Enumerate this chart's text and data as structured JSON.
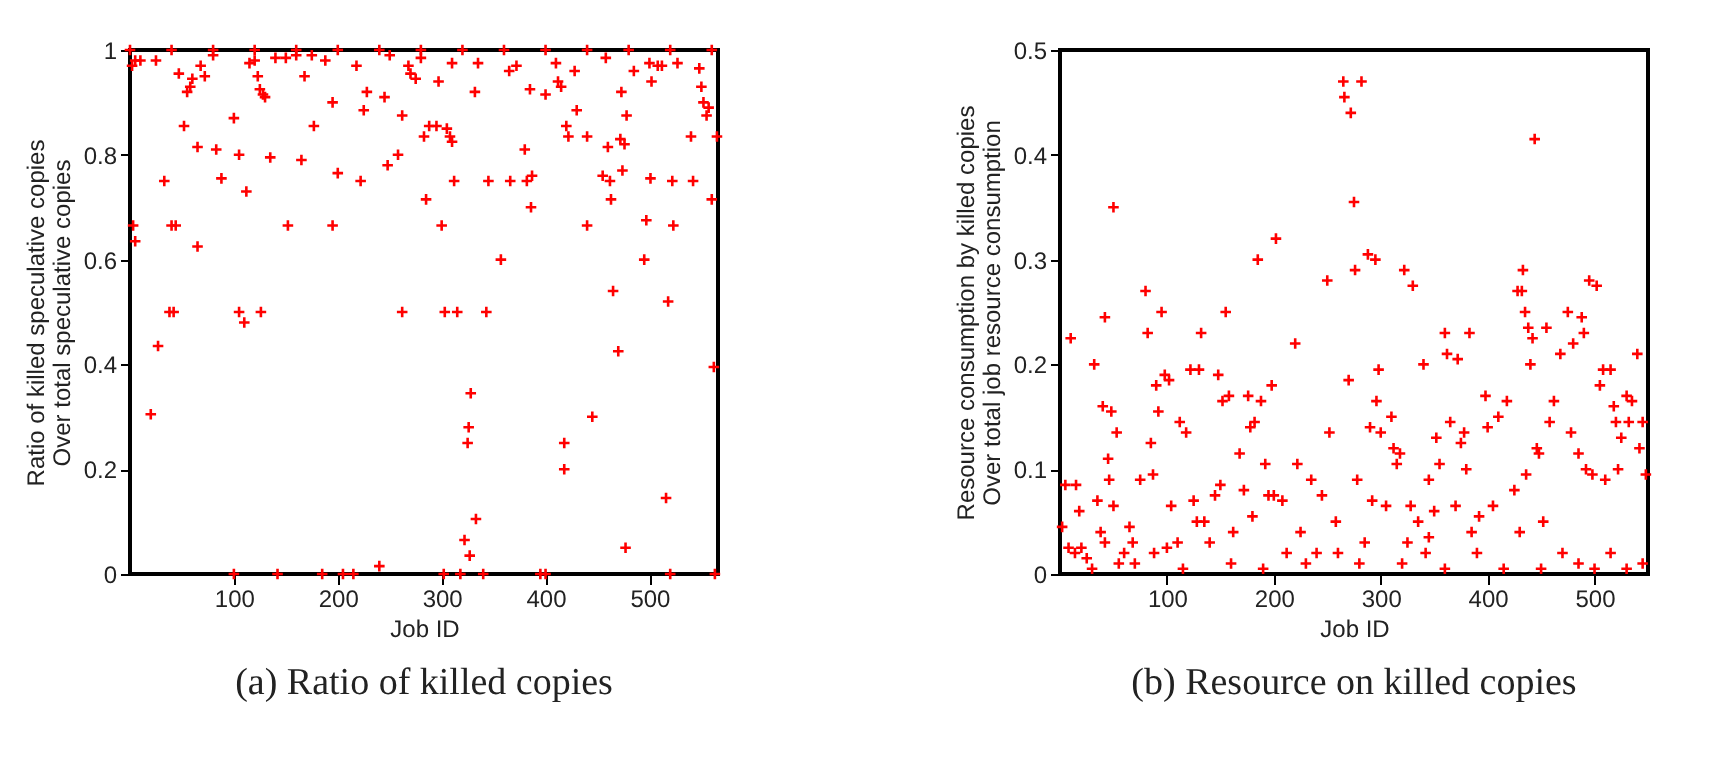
{
  "chart_data": [
    {
      "type": "scatter",
      "title": "(a) Ratio of killed copies",
      "xlabel": "Job ID",
      "ylabel": "Ratio of killed speculative copies\nOver total speculative copies",
      "xlim": [
        0,
        566
      ],
      "xticks": [
        100,
        200,
        300,
        400,
        500
      ],
      "ylim": [
        0,
        1
      ],
      "yticks": [
        0,
        0.2,
        0.4,
        0.6,
        0.8,
        1
      ],
      "marker": "cross",
      "grid": false,
      "series": [
        {
          "color": "#ff0000",
          "x": [
            0,
            40,
            80,
            120,
            160,
            200,
            240,
            280,
            320,
            360,
            400,
            440,
            480,
            520,
            560,
            2,
            5,
            10,
            25,
            3,
            5,
            20,
            27,
            33,
            38,
            42,
            40,
            44,
            47,
            52,
            55,
            58,
            60,
            65,
            65,
            68,
            72,
            80,
            83,
            88,
            100,
            100,
            105,
            105,
            110,
            112,
            115,
            120,
            123,
            125,
            128,
            130,
            126,
            135,
            140,
            142,
            150,
            152,
            160,
            165,
            168,
            175,
            177,
            185,
            188,
            195,
            195,
            200,
            205,
            215,
            218,
            222,
            225,
            228,
            240,
            245,
            248,
            250,
            258,
            262,
            262,
            268,
            270,
            275,
            280,
            283,
            285,
            288,
            295,
            297,
            300,
            302,
            305,
            303,
            308,
            310,
            310,
            312,
            315,
            318,
            322,
            325,
            326,
            328,
            327,
            332,
            333,
            335,
            340,
            343,
            345,
            357,
            365,
            366,
            372,
            380,
            382,
            385,
            387,
            386,
            395,
            400,
            400,
            410,
            412,
            415,
            418,
            418,
            420,
            422,
            428,
            430,
            440,
            440,
            445,
            455,
            458,
            460,
            462,
            463,
            465,
            470,
            472,
            473,
            474,
            476,
            477,
            478,
            485,
            495,
            497,
            500,
            501,
            502,
            508,
            512,
            516,
            518,
            520,
            522,
            523,
            527,
            540,
            542,
            548,
            550,
            552,
            555,
            557,
            560,
            562,
            563,
            565
          ],
          "values": [
            1,
            1,
            1,
            1,
            1,
            1,
            1,
            1,
            1,
            1,
            1,
            1,
            1,
            1,
            1,
            0.97,
            0.98,
            0.98,
            0.98,
            0.665,
            0.635,
            0.305,
            0.435,
            0.75,
            0.5,
            0.5,
            0.665,
            0.665,
            0.955,
            0.855,
            0.92,
            0.93,
            0.945,
            0.815,
            0.625,
            0.97,
            0.95,
            0.99,
            0.81,
            0.755,
            0.87,
            0,
            0.8,
            0.5,
            0.48,
            0.73,
            0.975,
            0.98,
            0.95,
            0.925,
            0.915,
            0.91,
            0.5,
            0.795,
            0.985,
            0,
            0.985,
            0.665,
            0.99,
            0.79,
            0.95,
            0.99,
            0.855,
            0,
            0.98,
            0.9,
            0.665,
            0.765,
            0,
            0,
            0.97,
            0.75,
            0.885,
            0.92,
            0.015,
            0.91,
            0.78,
            0.99,
            0.8,
            0.875,
            0.5,
            0.97,
            0.955,
            0.945,
            0.985,
            0.835,
            0.715,
            0.855,
            0.855,
            0.94,
            0.665,
            0,
            0.85,
            0.5,
            0.835,
            0.825,
            0.975,
            0.75,
            0.5,
            0,
            0.065,
            0.25,
            0.28,
            0.345,
            0.035,
            0.92,
            0.105,
            0.975,
            0,
            0.5,
            0.75,
            0.6,
            0.96,
            0.75,
            0.97,
            0.81,
            0.75,
            0.925,
            0.76,
            0.7,
            0,
            0.915,
            0,
            0.975,
            0.94,
            0.93,
            0.25,
            0.2,
            0.855,
            0.835,
            0.96,
            0.885,
            0.835,
            0.665,
            0.3,
            0.76,
            0.985,
            0.815,
            0.75,
            0.715,
            0.54,
            0.425,
            0.83,
            0.92,
            0.77,
            0.82,
            0.05,
            0.875,
            0.96,
            0.6,
            0.675,
            0.975,
            0.755,
            0.94,
            0.97,
            0.97,
            0.145,
            0.52,
            0,
            0.75,
            0.665,
            0.975,
            0.835,
            0.75,
            0.965,
            0.93,
            0.9,
            0.875,
            0.89,
            0.715,
            0.395,
            0,
            0.835
          ]
        }
      ]
    },
    {
      "type": "scatter",
      "title": "(b) Resource on killed copies",
      "xlabel": "Job ID",
      "ylabel": "Resource consumption by killed copies\nOver total job resource consumption",
      "xlim": [
        0,
        550
      ],
      "xticks": [
        100,
        200,
        300,
        400,
        500
      ],
      "ylim": [
        0,
        0.5
      ],
      "yticks": [
        0,
        0.1,
        0.2,
        0.3,
        0.4,
        0.5
      ],
      "marker": "cross",
      "grid": false,
      "series": [
        {
          "color": "#ff0000",
          "x": [
            2,
            5,
            10,
            15,
            18,
            8,
            14,
            20,
            25,
            32,
            35,
            38,
            42,
            40,
            42,
            45,
            46,
            48,
            50,
            53,
            50,
            55,
            60,
            65,
            68,
            75,
            80,
            82,
            85,
            87,
            88,
            90,
            92,
            95,
            98,
            100,
            102,
            104,
            110,
            112,
            118,
            122,
            125,
            128,
            130,
            132,
            135,
            140,
            145,
            148,
            150,
            152,
            155,
            158,
            162,
            168,
            172,
            176,
            178,
            180,
            182,
            185,
            188,
            192,
            195,
            198,
            200,
            202,
            208,
            212,
            220,
            222,
            225,
            235,
            240,
            245,
            250,
            252,
            258,
            265,
            266,
            270,
            272,
            275,
            276,
            278,
            282,
            285,
            288,
            290,
            292,
            295,
            296,
            298,
            300,
            305,
            310,
            312,
            315,
            318,
            322,
            325,
            328,
            330,
            335,
            340,
            342,
            345,
            350,
            352,
            355,
            360,
            362,
            365,
            370,
            372,
            375,
            378,
            380,
            383,
            385,
            392,
            398,
            400,
            405,
            410,
            418,
            425,
            428,
            432,
            433,
            435,
            436,
            438,
            440,
            442,
            444,
            446,
            448,
            452,
            455,
            458,
            462,
            468,
            475,
            478,
            480,
            485,
            488,
            490,
            492,
            495,
            498,
            502,
            505,
            508,
            510,
            515,
            518,
            520,
            522,
            525,
            530,
            532,
            535,
            540,
            542,
            545,
            548,
            30,
            70,
            115,
            160,
            190,
            230,
            260,
            280,
            320,
            345,
            360,
            390,
            415,
            430,
            450,
            470,
            485,
            500,
            515,
            530,
            545
          ],
          "values": [
            0.045,
            0.085,
            0.225,
            0.085,
            0.06,
            0.025,
            0.02,
            0.025,
            0.015,
            0.2,
            0.07,
            0.04,
            0.03,
            0.16,
            0.245,
            0.11,
            0.09,
            0.155,
            0.35,
            0.135,
            0.065,
            0.01,
            0.02,
            0.045,
            0.03,
            0.09,
            0.27,
            0.23,
            0.125,
            0.095,
            0.02,
            0.18,
            0.155,
            0.25,
            0.19,
            0.025,
            0.185,
            0.065,
            0.03,
            0.145,
            0.135,
            0.195,
            0.07,
            0.05,
            0.195,
            0.23,
            0.05,
            0.03,
            0.075,
            0.19,
            0.085,
            0.165,
            0.25,
            0.17,
            0.04,
            0.115,
            0.08,
            0.17,
            0.14,
            0.055,
            0.145,
            0.3,
            0.165,
            0.105,
            0.075,
            0.18,
            0.075,
            0.32,
            0.07,
            0.02,
            0.22,
            0.105,
            0.04,
            0.09,
            0.02,
            0.075,
            0.28,
            0.135,
            0.05,
            0.47,
            0.455,
            0.185,
            0.44,
            0.355,
            0.29,
            0.09,
            0.47,
            0.03,
            0.305,
            0.14,
            0.07,
            0.3,
            0.165,
            0.195,
            0.135,
            0.065,
            0.15,
            0.12,
            0.105,
            0.115,
            0.29,
            0.03,
            0.065,
            0.275,
            0.05,
            0.2,
            0.02,
            0.09,
            0.06,
            0.13,
            0.105,
            0.23,
            0.21,
            0.145,
            0.065,
            0.205,
            0.125,
            0.135,
            0.1,
            0.23,
            0.04,
            0.055,
            0.17,
            0.14,
            0.065,
            0.15,
            0.165,
            0.08,
            0.27,
            0.27,
            0.29,
            0.25,
            0.095,
            0.235,
            0.2,
            0.225,
            0.415,
            0.12,
            0.115,
            0.05,
            0.235,
            0.145,
            0.165,
            0.21,
            0.25,
            0.135,
            0.22,
            0.115,
            0.245,
            0.23,
            0.1,
            0.28,
            0.095,
            0.275,
            0.18,
            0.195,
            0.09,
            0.195,
            0.16,
            0.145,
            0.1,
            0.13,
            0.17,
            0.145,
            0.165,
            0.21,
            0.12,
            0.145,
            0.095,
            0.005,
            0.01,
            0.005,
            0.01,
            0.005,
            0.01,
            0.02,
            0.01,
            0.01,
            0.035,
            0.005,
            0.02,
            0.005,
            0.04,
            0.005,
            0.02,
            0.01,
            0.005,
            0.02,
            0.005,
            0.01
          ]
        }
      ]
    }
  ]
}
